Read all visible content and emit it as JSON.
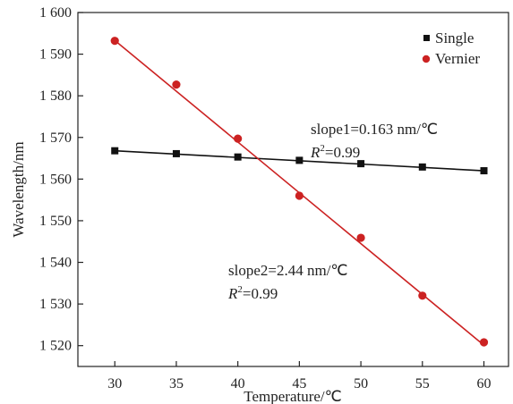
{
  "chart_data": {
    "type": "scatter",
    "xlabel": "Temperature/℃",
    "ylabel": "Wavelength/nm",
    "xlim": [
      27,
      62
    ],
    "ylim": [
      1515,
      1600
    ],
    "x_ticks": [
      30,
      35,
      40,
      45,
      50,
      55,
      60
    ],
    "x_tick_labels": [
      "30",
      "35",
      "40",
      "45",
      "50",
      "55",
      "60"
    ],
    "y_ticks": [
      1520,
      1530,
      1540,
      1550,
      1560,
      1570,
      1580,
      1590,
      1600
    ],
    "y_tick_labels": [
      "1 520",
      "1 530",
      "1 540",
      "1 550",
      "1 560",
      "1 570",
      "1 580",
      "1 590",
      "1 600"
    ],
    "grid": false,
    "legend_position": "top-right",
    "series": [
      {
        "name": "Single",
        "marker": "square",
        "color": "#111111",
        "x": [
          30,
          35,
          40,
          45,
          50,
          55,
          60
        ],
        "y": [
          1566.8,
          1566.1,
          1565.3,
          1564.5,
          1563.7,
          1562.9,
          1562.0
        ],
        "fit": {
          "x": [
            30,
            60
          ],
          "y": [
            1566.8,
            1562.0
          ]
        }
      },
      {
        "name": "Vernier",
        "marker": "circle",
        "color": "#cc2222",
        "x": [
          30,
          35,
          40,
          45,
          50,
          55,
          60
        ],
        "y": [
          1593.2,
          1582.7,
          1569.7,
          1556.0,
          1545.9,
          1532.0,
          1520.8
        ],
        "fit": {
          "x": [
            30,
            60
          ],
          "y": [
            1593.3,
            1520.1
          ]
        }
      }
    ],
    "annotations": [
      {
        "line1": "slope1=0.163 nm/℃",
        "r_symbol": "R",
        "r_sup": "2",
        "r_value": "=0.99"
      },
      {
        "line1": "slope2=2.44 nm/℃",
        "r_symbol": "R",
        "r_sup": "2",
        "r_value": "=0.99"
      }
    ]
  }
}
